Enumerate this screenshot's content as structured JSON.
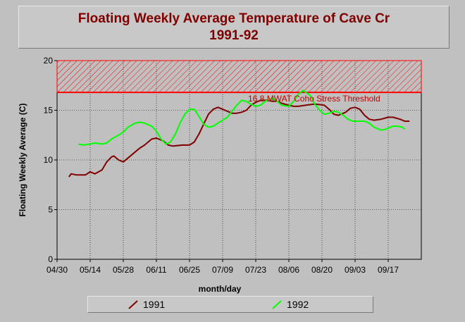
{
  "chart_data": {
    "type": "line",
    "title": "Floating Weekly Average Temperature of Cave Cr",
    "subtitle": "1991-92",
    "xlabel": "month/day",
    "ylabel": "Floating Weekly Average (C)",
    "ylim": [
      0,
      20
    ],
    "yticks": [
      "0",
      "5",
      "10",
      "15",
      "20"
    ],
    "xticks": [
      "04/30",
      "05/14",
      "05/28",
      "06/11",
      "06/25",
      "07/09",
      "07/23",
      "08/06",
      "08/20",
      "09/03",
      "09/17"
    ],
    "grid": true,
    "legend_position": "bottom",
    "threshold": {
      "value": 16.8,
      "upper": 20,
      "label": "16.8 MWAT Coho Stress Threshold",
      "color": "#ff0000"
    },
    "series": [
      {
        "name": "1991",
        "color": "#800000",
        "points": [
          [
            "05/05",
            8.3
          ],
          [
            "05/06",
            8.6
          ],
          [
            "05/08",
            8.5
          ],
          [
            "05/12",
            8.5
          ],
          [
            "05/14",
            8.8
          ],
          [
            "05/16",
            8.6
          ],
          [
            "05/19",
            9.0
          ],
          [
            "05/21",
            9.8
          ],
          [
            "05/23",
            10.3
          ],
          [
            "05/24",
            10.4
          ],
          [
            "05/26",
            10.0
          ],
          [
            "05/28",
            9.8
          ],
          [
            "05/30",
            10.2
          ],
          [
            "06/02",
            10.8
          ],
          [
            "06/04",
            11.2
          ],
          [
            "06/06",
            11.5
          ],
          [
            "06/09",
            12.1
          ],
          [
            "06/11",
            12.2
          ],
          [
            "06/14",
            11.9
          ],
          [
            "06/16",
            11.5
          ],
          [
            "06/18",
            11.4
          ],
          [
            "06/22",
            11.5
          ],
          [
            "06/25",
            11.5
          ],
          [
            "06/27",
            11.8
          ],
          [
            "06/29",
            12.6
          ],
          [
            "07/01",
            13.6
          ],
          [
            "07/03",
            14.6
          ],
          [
            "07/05",
            15.1
          ],
          [
            "07/07",
            15.3
          ],
          [
            "07/09",
            15.1
          ],
          [
            "07/11",
            14.9
          ],
          [
            "07/13",
            14.7
          ],
          [
            "07/15",
            14.7
          ],
          [
            "07/17",
            14.8
          ],
          [
            "07/19",
            15.0
          ],
          [
            "07/21",
            15.5
          ],
          [
            "07/23",
            15.8
          ],
          [
            "07/25",
            16.0
          ],
          [
            "07/28",
            16.0
          ],
          [
            "07/30",
            15.9
          ],
          [
            "08/01",
            15.9
          ],
          [
            "08/03",
            15.7
          ],
          [
            "08/06",
            15.5
          ],
          [
            "08/08",
            15.4
          ],
          [
            "08/10",
            15.4
          ],
          [
            "08/13",
            15.5
          ],
          [
            "08/16",
            15.6
          ],
          [
            "08/18",
            15.6
          ],
          [
            "08/21",
            15.5
          ],
          [
            "08/23",
            15.1
          ],
          [
            "08/25",
            14.6
          ],
          [
            "08/27",
            14.5
          ],
          [
            "08/30",
            14.8
          ],
          [
            "09/01",
            15.2
          ],
          [
            "09/03",
            15.3
          ],
          [
            "09/05",
            15.1
          ],
          [
            "09/07",
            14.5
          ],
          [
            "09/09",
            14.1
          ],
          [
            "09/11",
            14.0
          ],
          [
            "09/14",
            14.1
          ],
          [
            "09/17",
            14.3
          ],
          [
            "09/19",
            14.3
          ],
          [
            "09/22",
            14.1
          ],
          [
            "09/24",
            13.9
          ],
          [
            "09/26",
            13.9
          ]
        ]
      },
      {
        "name": "1992",
        "color": "#00ff00",
        "points": [
          [
            "05/09",
            11.6
          ],
          [
            "05/11",
            11.5
          ],
          [
            "05/14",
            11.6
          ],
          [
            "05/16",
            11.7
          ],
          [
            "05/19",
            11.6
          ],
          [
            "05/21",
            11.7
          ],
          [
            "05/23",
            12.1
          ],
          [
            "05/26",
            12.5
          ],
          [
            "05/28",
            12.8
          ],
          [
            "05/30",
            13.3
          ],
          [
            "06/02",
            13.7
          ],
          [
            "06/04",
            13.8
          ],
          [
            "06/06",
            13.7
          ],
          [
            "06/09",
            13.4
          ],
          [
            "06/11",
            12.9
          ],
          [
            "06/13",
            12.1
          ],
          [
            "06/15",
            11.6
          ],
          [
            "06/17",
            11.8
          ],
          [
            "06/19",
            12.6
          ],
          [
            "06/21",
            13.7
          ],
          [
            "06/23",
            14.6
          ],
          [
            "06/25",
            15.1
          ],
          [
            "06/27",
            15.1
          ],
          [
            "06/29",
            14.4
          ],
          [
            "07/01",
            13.6
          ],
          [
            "07/03",
            13.3
          ],
          [
            "07/05",
            13.4
          ],
          [
            "07/07",
            13.7
          ],
          [
            "07/09",
            14.0
          ],
          [
            "07/11",
            14.3
          ],
          [
            "07/13",
            14.9
          ],
          [
            "07/15",
            15.5
          ],
          [
            "07/17",
            16.0
          ],
          [
            "07/19",
            15.9
          ],
          [
            "07/21",
            15.6
          ],
          [
            "07/23",
            15.4
          ],
          [
            "07/25",
            15.5
          ],
          [
            "07/27",
            15.9
          ],
          [
            "07/30",
            16.2
          ],
          [
            "08/01",
            15.9
          ],
          [
            "08/03",
            15.5
          ],
          [
            "08/06",
            15.4
          ],
          [
            "08/08",
            15.9
          ],
          [
            "08/10",
            16.6
          ],
          [
            "08/12",
            17.0
          ],
          [
            "08/15",
            16.5
          ],
          [
            "08/17",
            15.6
          ],
          [
            "08/19",
            15.0
          ],
          [
            "08/21",
            14.6
          ],
          [
            "08/23",
            14.7
          ],
          [
            "08/25",
            14.9
          ],
          [
            "08/27",
            14.8
          ],
          [
            "08/29",
            14.5
          ],
          [
            "08/31",
            14.1
          ],
          [
            "09/02",
            13.9
          ],
          [
            "09/05",
            13.9
          ],
          [
            "09/07",
            13.9
          ],
          [
            "09/09",
            13.7
          ],
          [
            "09/11",
            13.3
          ],
          [
            "09/14",
            13.0
          ],
          [
            "09/16",
            13.1
          ],
          [
            "09/19",
            13.4
          ],
          [
            "09/21",
            13.4
          ],
          [
            "09/23",
            13.3
          ],
          [
            "09/24",
            13.1
          ]
        ]
      }
    ]
  },
  "colors": {
    "background": "#c0c0c0",
    "plot_area": "#c0c0c0",
    "title": "#800000"
  }
}
